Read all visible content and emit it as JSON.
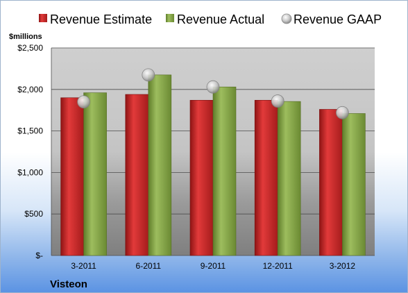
{
  "chart_data": {
    "type": "bar",
    "title": "",
    "company": "Visteon",
    "unit_label": "$millions",
    "categories": [
      "3-2011",
      "6-2011",
      "9-2011",
      "12-2011",
      "3-2012"
    ],
    "series": [
      {
        "name": "Revenue Estimate",
        "kind": "bar",
        "color": "#d42a2a",
        "values": [
          1900,
          1940,
          1870,
          1870,
          1760
        ]
      },
      {
        "name": "Revenue Actual",
        "kind": "bar",
        "color": "#8fb04f",
        "values": [
          1960,
          2175,
          2030,
          1855,
          1710
        ]
      },
      {
        "name": "Revenue GAAP",
        "kind": "marker",
        "color": "#bfbfbf",
        "values": [
          1850,
          2175,
          2030,
          1860,
          1720
        ]
      }
    ],
    "ylim": [
      0,
      2500
    ],
    "yticks": [
      0,
      500,
      1000,
      1500,
      2000,
      2500
    ],
    "ytick_labels": [
      "$-",
      "$500",
      "$1,000",
      "$1,500",
      "$2,000",
      "$2,500"
    ],
    "grid": true,
    "legend_position": "top"
  }
}
